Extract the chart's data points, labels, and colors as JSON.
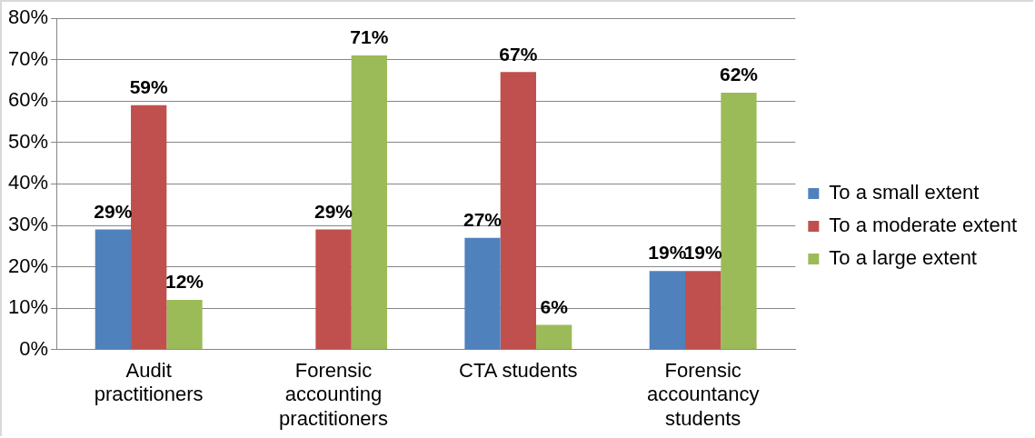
{
  "chart_data": {
    "type": "bar",
    "categories": [
      "Audit practitioners",
      "Forensic accounting practitioners",
      "CTA students",
      "Forensic accountancy students"
    ],
    "series": [
      {
        "name": "To a small extent",
        "color": "#4f81bd",
        "values": [
          29,
          null,
          27,
          19
        ],
        "value_labels": [
          "29%",
          null,
          "27%",
          "19%"
        ]
      },
      {
        "name": "To a moderate extent",
        "color": "#c0504d",
        "values": [
          59,
          29,
          67,
          19
        ],
        "value_labels": [
          "59%",
          "29%",
          "67%",
          "19%"
        ]
      },
      {
        "name": "To a large extent",
        "color": "#9bbb59",
        "values": [
          12,
          71,
          6,
          62
        ],
        "value_labels": [
          "12%",
          "71%",
          "6%",
          "62%"
        ]
      }
    ],
    "ylim": [
      0,
      80
    ],
    "yticks": [
      {
        "value": 0,
        "label": "0%"
      },
      {
        "value": 10,
        "label": "10%"
      },
      {
        "value": 20,
        "label": "20%"
      },
      {
        "value": 30,
        "label": "30%"
      },
      {
        "value": 40,
        "label": "40%"
      },
      {
        "value": 50,
        "label": "50%"
      },
      {
        "value": 60,
        "label": "60%"
      },
      {
        "value": 70,
        "label": "70%"
      },
      {
        "value": 80,
        "label": "80%"
      }
    ],
    "grid": "y",
    "legend": "right"
  }
}
